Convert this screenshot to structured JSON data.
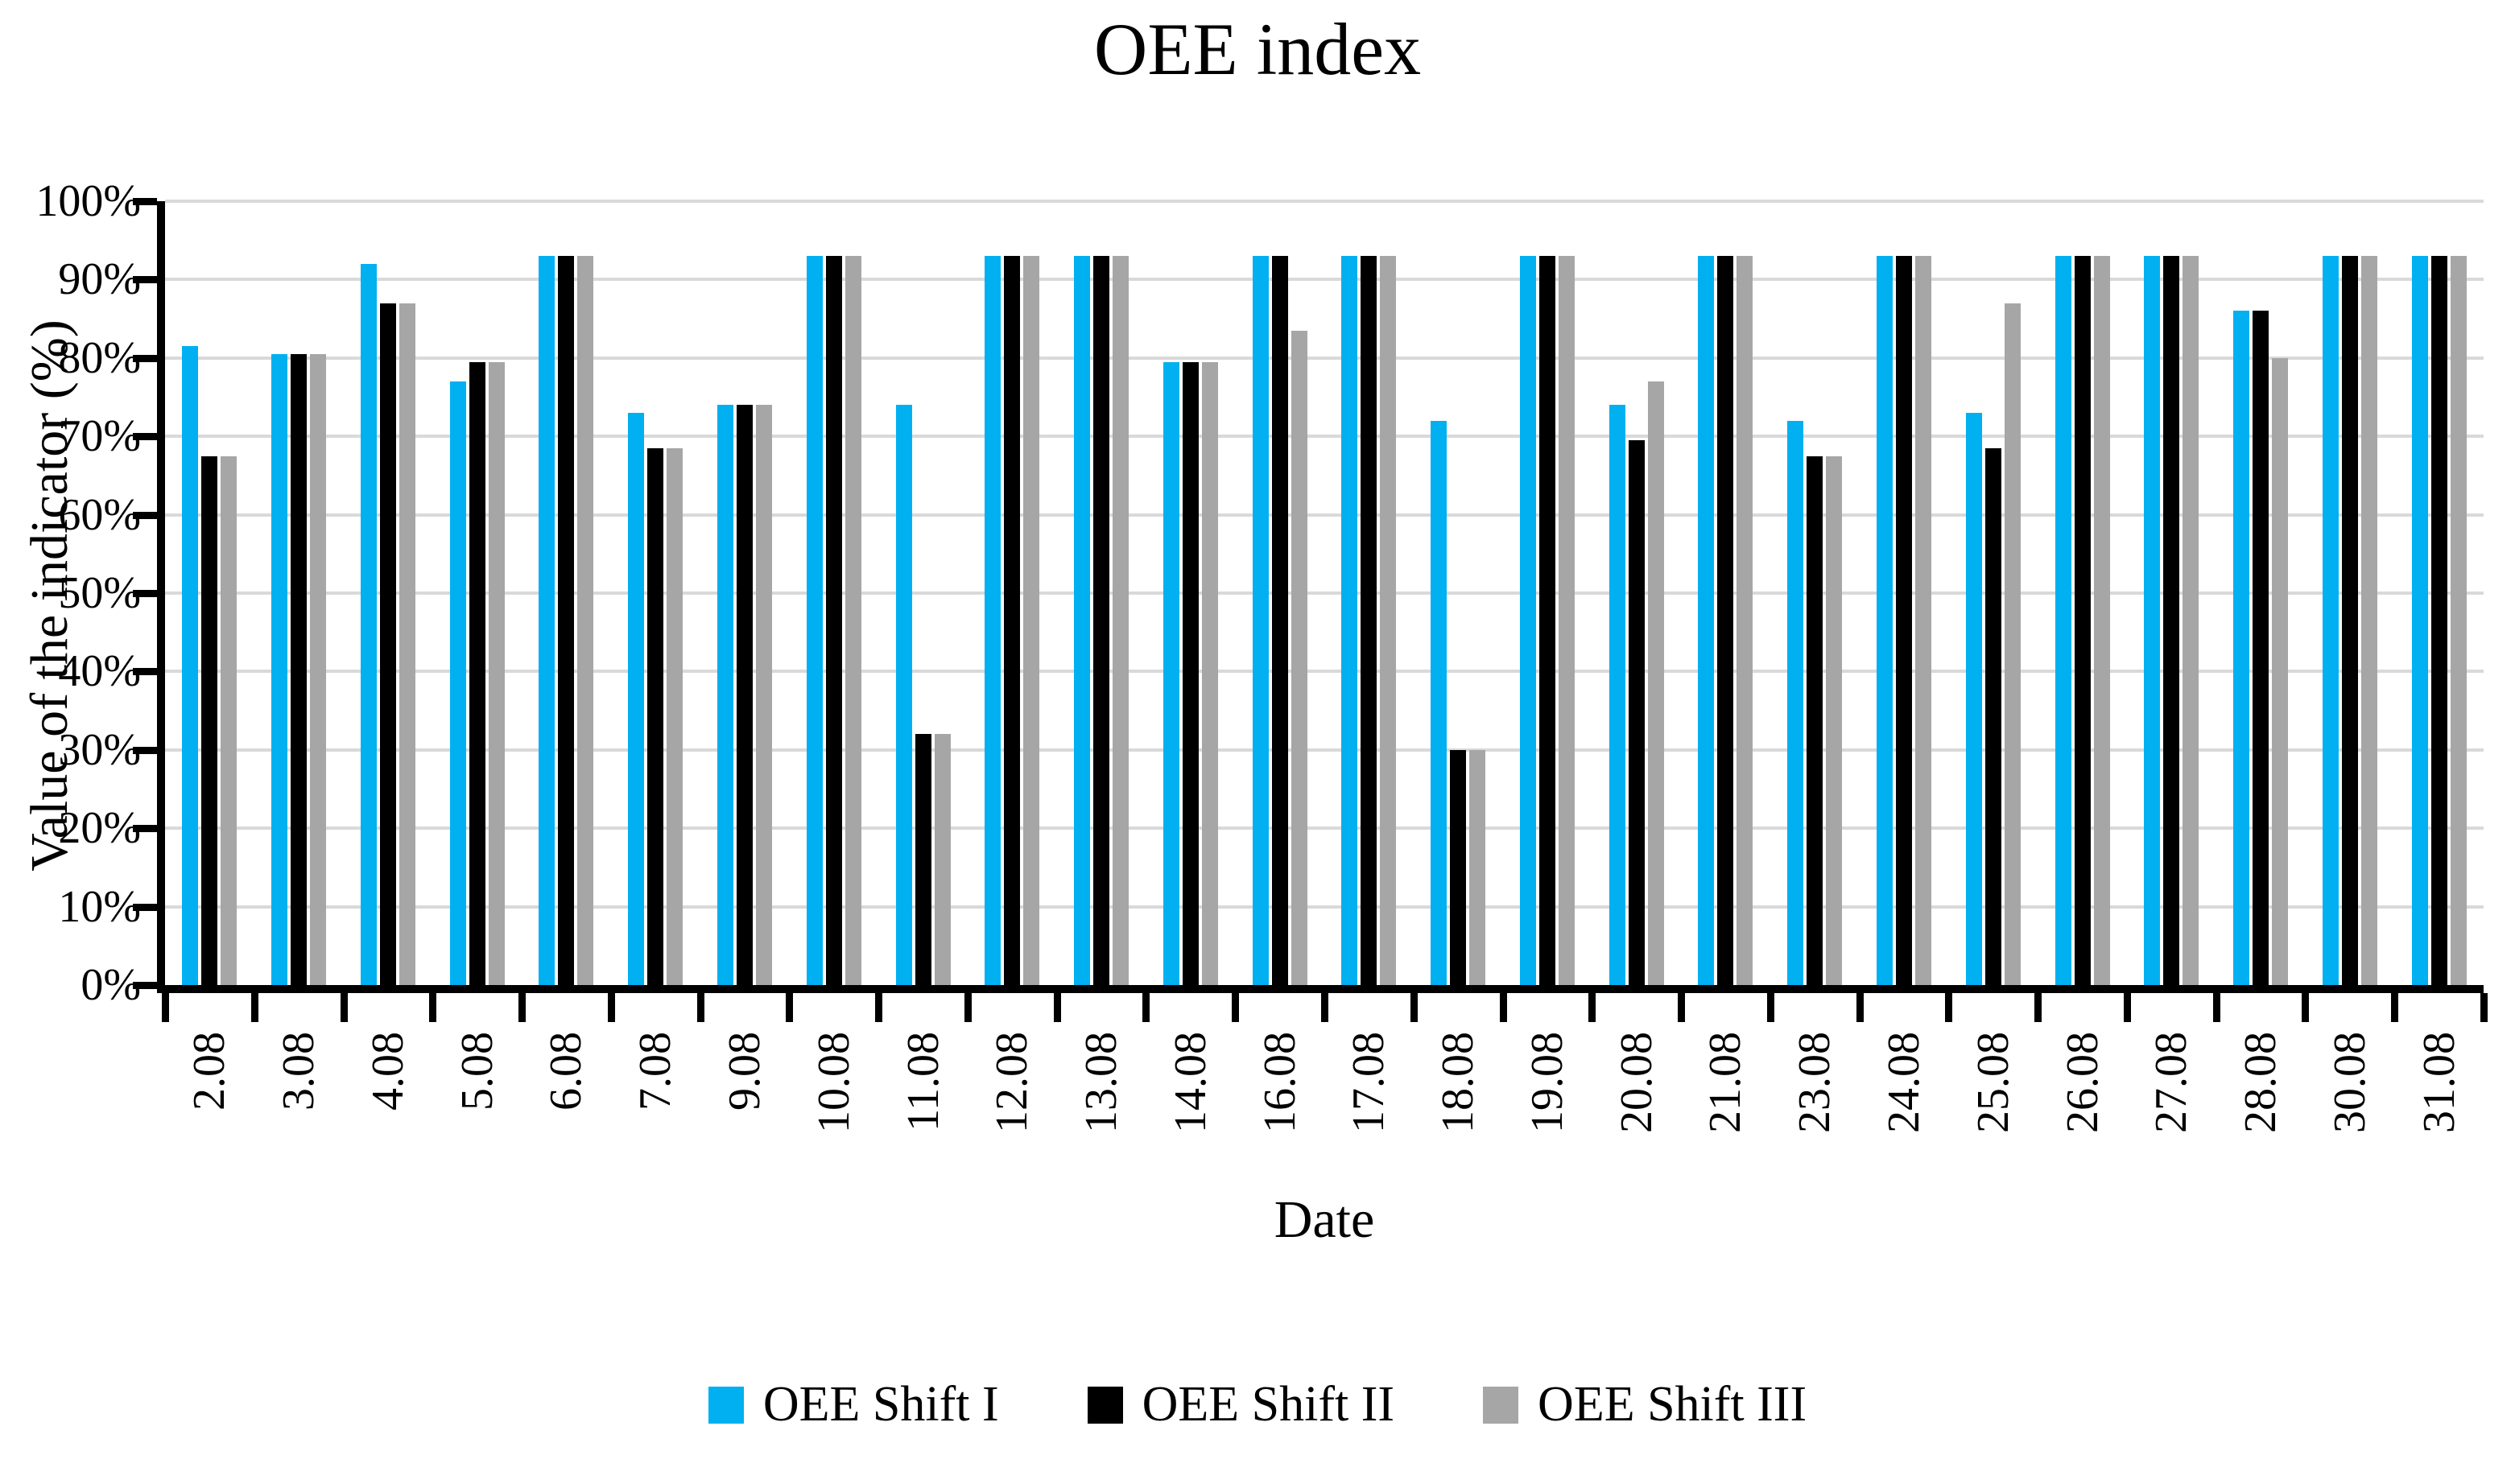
{
  "chart_data": {
    "type": "bar",
    "title": "OEE index",
    "xlabel": "Date",
    "ylabel": "Value of the indicator (%)",
    "ylim": [
      0,
      100
    ],
    "y_tick_labels": [
      "100%",
      "90%",
      "80%",
      "70%",
      "60%",
      "50%",
      "40%",
      "30%",
      "20%",
      "10%",
      "0%"
    ],
    "grid": true,
    "legend_position": "bottom",
    "categories": [
      "2.08",
      "3.08",
      "4.08",
      "5.08",
      "6.08",
      "7.08",
      "9.08",
      "10.08",
      "11.08",
      "12.08",
      "13.08",
      "14.08",
      "16.08",
      "17.08",
      "18.08",
      "19.08",
      "20.08",
      "21.08",
      "23.08",
      "24.08",
      "25.08",
      "26.08",
      "27.08",
      "28.08",
      "30.08",
      "31.08"
    ],
    "series": [
      {
        "name": "OEE Shift I",
        "color": "#00B0F0",
        "values": [
          81.5,
          80.5,
          92,
          77,
          93,
          73,
          74,
          93,
          74,
          93,
          93,
          79.5,
          93,
          93,
          72,
          93,
          74,
          93,
          72,
          93,
          73,
          93,
          93,
          86,
          93,
          93
        ]
      },
      {
        "name": "OEE Shift II",
        "color": "#000000",
        "values": [
          67.5,
          80.5,
          87,
          79.5,
          93,
          68.5,
          74,
          93,
          32,
          93,
          93,
          79.5,
          93,
          93,
          30,
          93,
          69.5,
          93,
          67.5,
          93,
          68.5,
          93,
          93,
          86,
          93,
          93
        ]
      },
      {
        "name": "OEE Shift III",
        "color": "#A6A6A6",
        "values": [
          67.5,
          80.5,
          87,
          79.5,
          93,
          68.5,
          74,
          93,
          32,
          93,
          93,
          79.5,
          83.5,
          93,
          30,
          93,
          77,
          93,
          67.5,
          93,
          87,
          93,
          93,
          80,
          93,
          93
        ]
      }
    ],
    "colors": {
      "axis": "#000000",
      "gridline": "#D9D9D9",
      "background": "#FFFFFF"
    }
  }
}
